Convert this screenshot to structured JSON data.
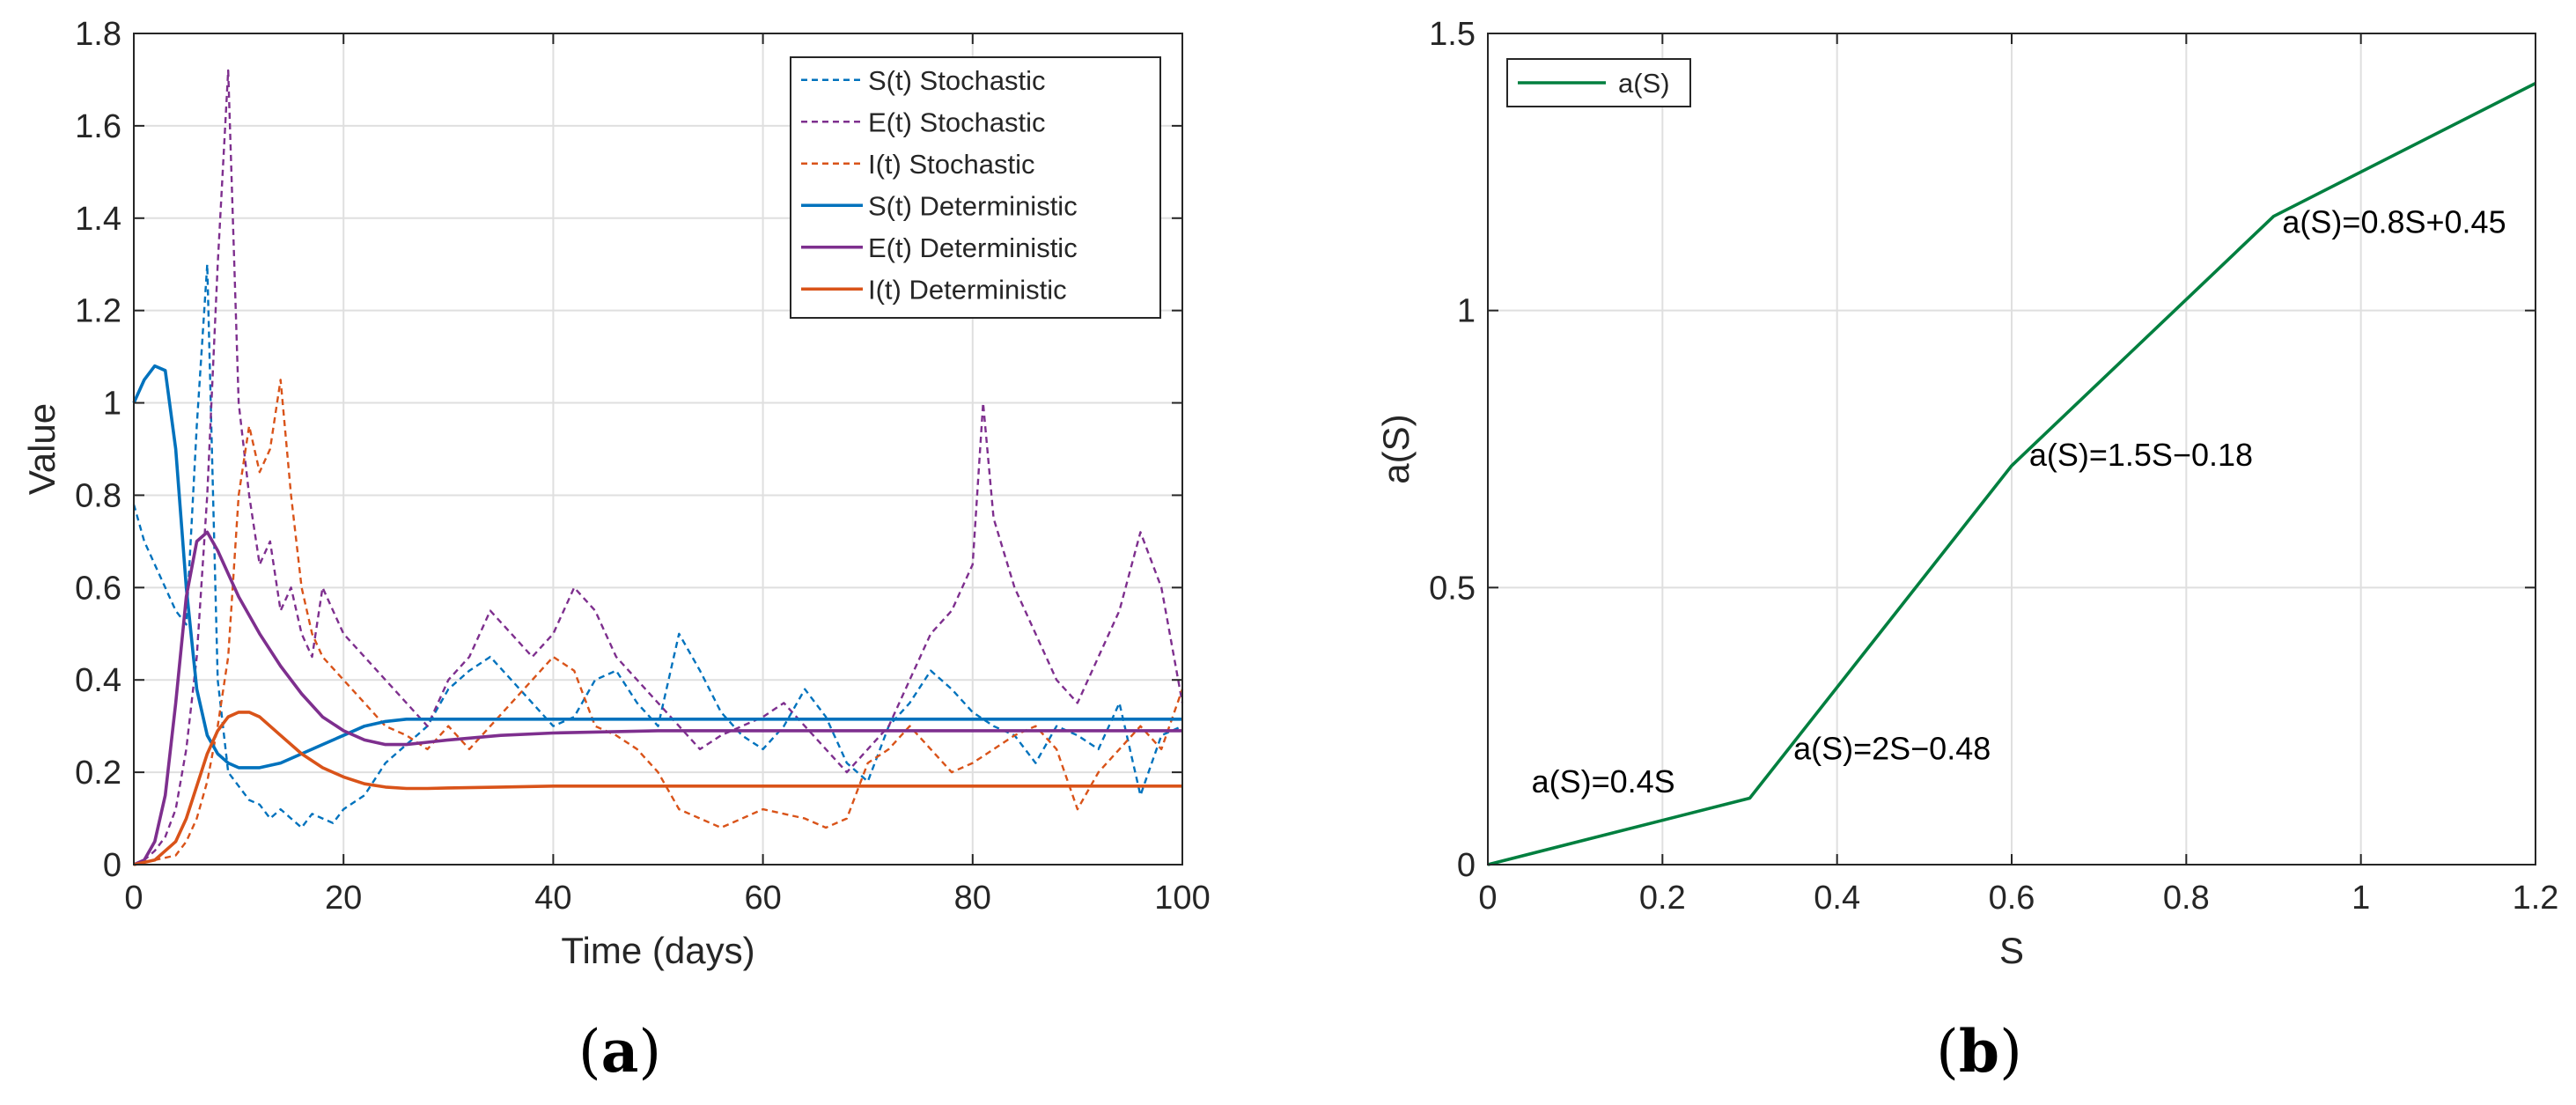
{
  "panels": {
    "a": {
      "open": "(",
      "letter": "a",
      "close": ")"
    },
    "b": {
      "open": "(",
      "letter": "b",
      "close": ")"
    }
  },
  "chart_data": [
    {
      "type": "line",
      "xlabel": "Time (days)",
      "ylabel": "Value",
      "xlim": [
        0,
        100
      ],
      "ylim": [
        0,
        1.8
      ],
      "xticks": [
        "0",
        "20",
        "40",
        "60",
        "80",
        "100"
      ],
      "yticks": [
        "0",
        "0.2",
        "0.4",
        "0.6",
        "0.8",
        "1",
        "1.2",
        "1.4",
        "1.6",
        "1.8"
      ],
      "grid": true,
      "legend_position": "top-right",
      "series": [
        {
          "name": "S(t) Stochastic",
          "style": "dashed",
          "color": "#0072BD",
          "x": [
            0,
            1,
            2,
            3,
            4,
            5,
            6,
            7,
            8,
            9,
            10,
            11,
            12,
            13,
            14,
            15,
            16,
            17,
            18,
            19,
            20,
            22,
            24,
            26,
            28,
            30,
            32,
            34,
            36,
            38,
            40,
            42,
            44,
            46,
            48,
            50,
            52,
            54,
            56,
            58,
            60,
            62,
            64,
            66,
            68,
            70,
            72,
            74,
            76,
            78,
            80,
            82,
            84,
            86,
            88,
            90,
            92,
            94,
            96,
            98,
            100
          ],
          "y": [
            0.78,
            0.7,
            0.65,
            0.6,
            0.55,
            0.52,
            0.95,
            1.3,
            0.4,
            0.2,
            0.17,
            0.14,
            0.13,
            0.1,
            0.12,
            0.1,
            0.08,
            0.11,
            0.1,
            0.09,
            0.12,
            0.15,
            0.22,
            0.26,
            0.3,
            0.38,
            0.42,
            0.45,
            0.4,
            0.35,
            0.3,
            0.32,
            0.4,
            0.42,
            0.35,
            0.3,
            0.5,
            0.42,
            0.33,
            0.28,
            0.25,
            0.3,
            0.38,
            0.32,
            0.22,
            0.18,
            0.3,
            0.35,
            0.42,
            0.38,
            0.33,
            0.3,
            0.28,
            0.22,
            0.3,
            0.28,
            0.25,
            0.35,
            0.15,
            0.28,
            0.3
          ]
        },
        {
          "name": "E(t) Stochastic",
          "style": "dashed",
          "color": "#7E2F8E",
          "x": [
            0,
            1,
            2,
            3,
            4,
            5,
            6,
            7,
            8,
            9,
            10,
            11,
            12,
            13,
            14,
            15,
            16,
            17,
            18,
            19,
            20,
            22,
            24,
            26,
            28,
            30,
            32,
            34,
            36,
            38,
            40,
            42,
            44,
            46,
            48,
            50,
            52,
            54,
            56,
            58,
            60,
            62,
            64,
            66,
            68,
            70,
            72,
            74,
            76,
            78,
            80,
            81,
            82,
            84,
            86,
            88,
            90,
            92,
            94,
            96,
            98,
            100
          ],
          "y": [
            0.0,
            0.01,
            0.03,
            0.06,
            0.12,
            0.25,
            0.45,
            0.8,
            1.3,
            1.72,
            1.0,
            0.8,
            0.65,
            0.7,
            0.55,
            0.6,
            0.5,
            0.45,
            0.6,
            0.55,
            0.5,
            0.45,
            0.4,
            0.35,
            0.3,
            0.4,
            0.45,
            0.55,
            0.5,
            0.45,
            0.5,
            0.6,
            0.55,
            0.45,
            0.4,
            0.35,
            0.3,
            0.25,
            0.28,
            0.3,
            0.32,
            0.35,
            0.3,
            0.25,
            0.2,
            0.25,
            0.3,
            0.4,
            0.5,
            0.55,
            0.65,
            1.0,
            0.75,
            0.6,
            0.5,
            0.4,
            0.35,
            0.45,
            0.55,
            0.72,
            0.6,
            0.35
          ]
        },
        {
          "name": "I(t) Stochastic",
          "style": "dashed",
          "color": "#D95319",
          "x": [
            0,
            2,
            4,
            5,
            6,
            7,
            8,
            9,
            10,
            11,
            12,
            13,
            14,
            15,
            16,
            17,
            18,
            20,
            22,
            24,
            26,
            28,
            30,
            32,
            34,
            36,
            38,
            40,
            42,
            44,
            46,
            48,
            50,
            52,
            54,
            56,
            58,
            60,
            62,
            64,
            66,
            68,
            70,
            72,
            74,
            76,
            78,
            80,
            82,
            84,
            86,
            88,
            90,
            92,
            94,
            96,
            98,
            100
          ],
          "y": [
            0.0,
            0.01,
            0.02,
            0.05,
            0.1,
            0.18,
            0.3,
            0.45,
            0.8,
            0.95,
            0.85,
            0.9,
            1.05,
            0.8,
            0.6,
            0.5,
            0.45,
            0.4,
            0.35,
            0.3,
            0.28,
            0.25,
            0.3,
            0.25,
            0.3,
            0.35,
            0.4,
            0.45,
            0.42,
            0.3,
            0.28,
            0.25,
            0.2,
            0.12,
            0.1,
            0.08,
            0.1,
            0.12,
            0.11,
            0.1,
            0.08,
            0.1,
            0.22,
            0.25,
            0.3,
            0.25,
            0.2,
            0.22,
            0.25,
            0.28,
            0.3,
            0.25,
            0.12,
            0.2,
            0.25,
            0.3,
            0.25,
            0.38
          ]
        },
        {
          "name": "S(t) Deterministic",
          "style": "solid",
          "color": "#0072BD",
          "x": [
            0,
            1,
            2,
            3,
            4,
            5,
            6,
            7,
            8,
            9,
            10,
            11,
            12,
            14,
            16,
            18,
            20,
            22,
            24,
            26,
            28,
            30,
            35,
            40,
            50,
            60,
            70,
            80,
            90,
            100
          ],
          "y": [
            1.0,
            1.05,
            1.08,
            1.07,
            0.9,
            0.6,
            0.38,
            0.28,
            0.24,
            0.22,
            0.21,
            0.21,
            0.21,
            0.22,
            0.24,
            0.26,
            0.28,
            0.3,
            0.31,
            0.315,
            0.315,
            0.315,
            0.315,
            0.315,
            0.315,
            0.315,
            0.315,
            0.315,
            0.315,
            0.315
          ]
        },
        {
          "name": "E(t) Deterministic",
          "style": "solid",
          "color": "#7E2F8E",
          "x": [
            0,
            1,
            2,
            3,
            4,
            5,
            6,
            7,
            8,
            9,
            10,
            12,
            14,
            16,
            18,
            20,
            22,
            24,
            26,
            28,
            30,
            35,
            40,
            50,
            60,
            70,
            80,
            90,
            100
          ],
          "y": [
            0.0,
            0.01,
            0.05,
            0.15,
            0.35,
            0.58,
            0.7,
            0.72,
            0.68,
            0.63,
            0.58,
            0.5,
            0.43,
            0.37,
            0.32,
            0.29,
            0.27,
            0.26,
            0.26,
            0.265,
            0.27,
            0.28,
            0.285,
            0.29,
            0.29,
            0.29,
            0.29,
            0.29,
            0.29
          ]
        },
        {
          "name": "I(t) Deterministic",
          "style": "solid",
          "color": "#D95319",
          "x": [
            0,
            2,
            4,
            5,
            6,
            7,
            8,
            9,
            10,
            11,
            12,
            14,
            16,
            18,
            20,
            22,
            24,
            26,
            28,
            30,
            35,
            40,
            50,
            60,
            70,
            80,
            90,
            100
          ],
          "y": [
            0.0,
            0.01,
            0.05,
            0.1,
            0.17,
            0.24,
            0.29,
            0.32,
            0.33,
            0.33,
            0.32,
            0.28,
            0.24,
            0.21,
            0.19,
            0.175,
            0.168,
            0.165,
            0.165,
            0.166,
            0.168,
            0.17,
            0.17,
            0.17,
            0.17,
            0.17,
            0.17,
            0.17
          ]
        }
      ]
    },
    {
      "type": "line",
      "xlabel": "S",
      "ylabel": "a(S)",
      "xlim": [
        0,
        1.2
      ],
      "ylim": [
        0,
        1.5
      ],
      "xticks": [
        "0",
        "0.2",
        "0.4",
        "0.6",
        "0.8",
        "1",
        "1.2"
      ],
      "yticks": [
        "0",
        "0.5",
        "1",
        "1.5"
      ],
      "grid": true,
      "legend_position": "top-left",
      "series": [
        {
          "name": "a(S)",
          "style": "solid",
          "color": "#007F3F",
          "x": [
            0,
            0.3,
            0.6,
            0.9,
            1.2
          ],
          "y": [
            0,
            0.12,
            0.72,
            1.17,
            1.41
          ]
        }
      ],
      "annotations": [
        {
          "text": "a(S)=0.4S",
          "x": 0.05,
          "y": 0.13
        },
        {
          "text": "a(S)=2S−0.48",
          "x": 0.35,
          "y": 0.19
        },
        {
          "text": "a(S)=1.5S−0.18",
          "x": 0.62,
          "y": 0.72
        },
        {
          "text": "a(S)=0.8S+0.45",
          "x": 0.91,
          "y": 1.14
        }
      ]
    }
  ]
}
